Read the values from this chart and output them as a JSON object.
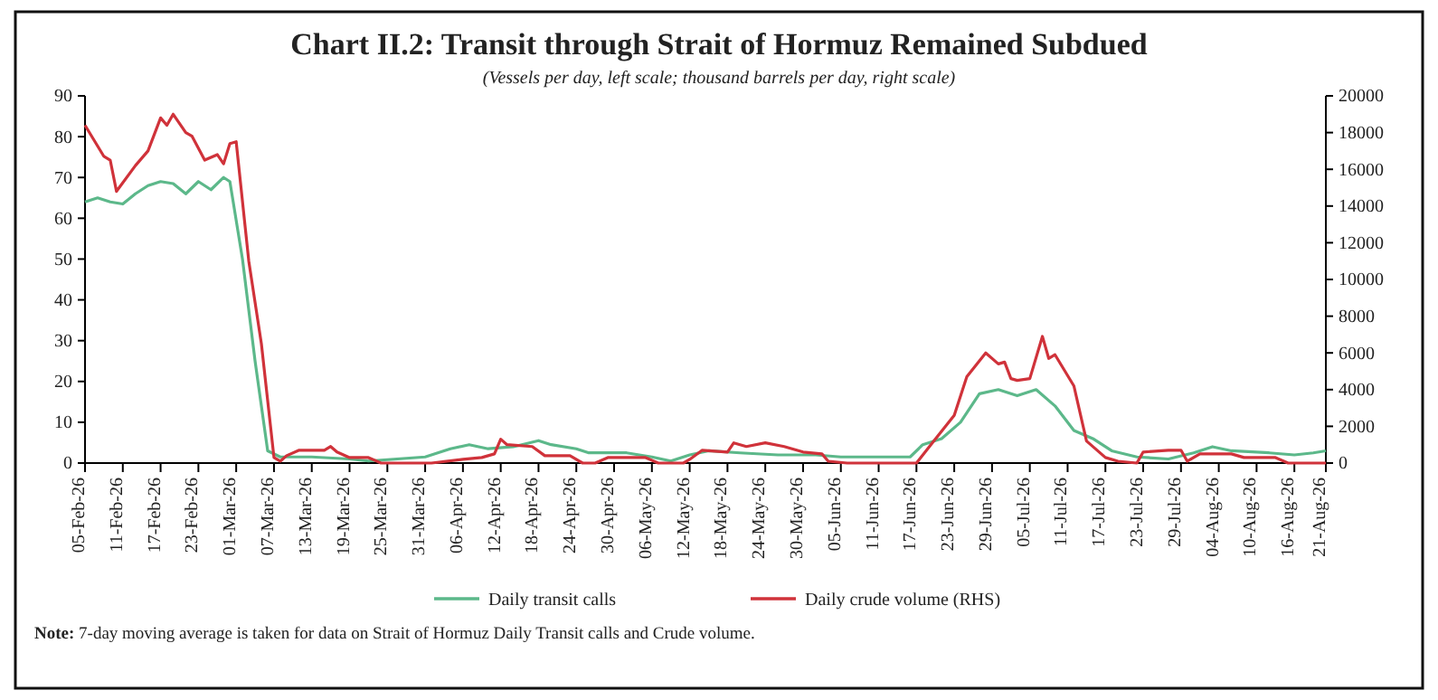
{
  "chart_data": {
    "type": "line",
    "title": "Chart II.2: Transit through Strait of Hormuz Remained Subdued",
    "subtitle": "(Vessels per day, left scale; thousand barrels per day, right scale)",
    "xlim": [
      "--02-05",
      "--08-21"
    ],
    "xticks": [
      {
        "value": "--02-05",
        "label": "05-Feb-26"
      },
      {
        "value": "--02-11",
        "label": "11-Feb-26"
      },
      {
        "value": "--02-17",
        "label": "17-Feb-26"
      },
      {
        "value": "--02-23",
        "label": "23-Feb-26"
      },
      {
        "value": "--03-01",
        "label": "01-Mar-26"
      },
      {
        "value": "--03-07",
        "label": "07-Mar-26"
      },
      {
        "value": "--03-13",
        "label": "13-Mar-26"
      },
      {
        "value": "--03-19",
        "label": "19-Mar-26"
      },
      {
        "value": "--03-25",
        "label": "25-Mar-26"
      },
      {
        "value": "--03-31",
        "label": "31-Mar-26"
      },
      {
        "value": "--04-06",
        "label": "06-Apr-26"
      },
      {
        "value": "--04-12",
        "label": "12-Apr-26"
      },
      {
        "value": "--04-18",
        "label": "18-Apr-26"
      },
      {
        "value": "--04-24",
        "label": "24-Apr-26"
      },
      {
        "value": "--04-30",
        "label": "30-Apr-26"
      },
      {
        "value": "--05-06",
        "label": "06-May-26"
      },
      {
        "value": "--05-12",
        "label": "12-May-26"
      },
      {
        "value": "--05-18",
        "label": "18-May-26"
      },
      {
        "value": "--05-24",
        "label": "24-May-26"
      },
      {
        "value": "--05-30",
        "label": "30-May-26"
      },
      {
        "value": "--06-05",
        "label": "05-Jun-26"
      },
      {
        "value": "--06-11",
        "label": "11-Jun-26"
      },
      {
        "value": "--06-17",
        "label": "17-Jun-26"
      },
      {
        "value": "--06-23",
        "label": "23-Jun-26"
      },
      {
        "value": "--06-29",
        "label": "29-Jun-26"
      },
      {
        "value": "--07-05",
        "label": "05-Jul-26"
      },
      {
        "value": "--07-11",
        "label": "11-Jul-26"
      },
      {
        "value": "--07-17",
        "label": "17-Jul-26"
      },
      {
        "value": "--07-23",
        "label": "23-Jul-26"
      },
      {
        "value": "--07-29",
        "label": "29-Jul-26"
      },
      {
        "value": "--08-04",
        "label": "04-Aug-26"
      },
      {
        "value": "--08-10",
        "label": "10-Aug-26"
      },
      {
        "value": "--08-16",
        "label": "16-Aug-26"
      },
      {
        "value": "--08-21",
        "label": "21-Aug-26"
      }
    ],
    "ylim": [
      0,
      90
    ],
    "yticks": [
      0,
      10,
      20,
      30,
      40,
      50,
      60,
      70,
      80,
      90
    ],
    "y2lim": [
      0,
      20000
    ],
    "y2ticks": [
      0,
      2000,
      4000,
      6000,
      8000,
      10000,
      12000,
      14000,
      16000,
      18000,
      20000
    ],
    "legend": "bottom",
    "series": [
      {
        "name": "Daily transit calls",
        "color": "#5cb88a",
        "axis": "y",
        "x": [
          "--02-05",
          "--02-07",
          "--02-09",
          "--02-11",
          "--02-13",
          "--02-15",
          "--02-17",
          "--02-19",
          "--02-21",
          "--02-23",
          "--02-25",
          "--02-27",
          "--02-28",
          "--03-02",
          "--03-04",
          "--03-06",
          "--03-08",
          "--03-13",
          "--03-19",
          "--03-22",
          "--03-31",
          "--04-04",
          "--04-07",
          "--04-10",
          "--04-14",
          "--04-18",
          "--04-20",
          "--04-24",
          "--04-26",
          "--05-02",
          "--05-06",
          "--05-09",
          "--05-12",
          "--05-15",
          "--05-20",
          "--05-26",
          "--06-01",
          "--06-05",
          "--06-10",
          "--06-16",
          "--06-18",
          "--06-21",
          "--06-24",
          "--06-27",
          "--06-30",
          "--07-03",
          "--07-06",
          "--07-09",
          "--07-12",
          "--07-15",
          "--07-18",
          "--07-22",
          "--07-27",
          "--07-31",
          "--08-03",
          "--08-06",
          "--08-12",
          "--08-16",
          "--08-19",
          "--08-21"
        ],
        "values": [
          64,
          65,
          64,
          63.5,
          66,
          68,
          69,
          68.5,
          66,
          69,
          67,
          70,
          69,
          50,
          25,
          3,
          1.5,
          1.5,
          1,
          0.5,
          1.5,
          3.5,
          4.5,
          3.5,
          4,
          5.5,
          4.5,
          3.5,
          2.5,
          2.5,
          1.5,
          0.5,
          2,
          3,
          2.5,
          2,
          2,
          1.5,
          1.5,
          1.5,
          4.5,
          6,
          10,
          17,
          18,
          16.5,
          18,
          14,
          8,
          6,
          3,
          1.5,
          1,
          2.5,
          4,
          3,
          2.5,
          2,
          2.5,
          3
        ]
      },
      {
        "name": "Daily crude volume (RHS)",
        "color": "#d0323a",
        "axis": "y2",
        "x": [
          "--02-05",
          "--02-08",
          "--02-09",
          "--02-10",
          "--02-13",
          "--02-15",
          "--02-17",
          "--02-18",
          "--02-19",
          "--02-21",
          "--02-22",
          "--02-24",
          "--02-26",
          "--02-27",
          "--02-28",
          "--03-01",
          "--03-03",
          "--03-05",
          "--03-07",
          "--03-08",
          "--03-09",
          "--03-11",
          "--03-15",
          "--03-16",
          "--03-17",
          "--03-19",
          "--03-22",
          "--03-24",
          "--04-01",
          "--04-06",
          "--04-09",
          "--04-11",
          "--04-12",
          "--04-13",
          "--04-17",
          "--04-19",
          "--04-23",
          "--04-25",
          "--04-27",
          "--04-29",
          "--05-05",
          "--05-07",
          "--05-11",
          "--05-12",
          "--05-14",
          "--05-18",
          "--05-19",
          "--05-21",
          "--05-24",
          "--05-27",
          "--05-30",
          "--06-02",
          "--06-03",
          "--06-06",
          "--06-17",
          "--06-20",
          "--06-23",
          "--06-25",
          "--06-28",
          "--06-30",
          "--07-01",
          "--07-02",
          "--07-03",
          "--07-05",
          "--07-07",
          "--07-08",
          "--07-09",
          "--07-12",
          "--07-14",
          "--07-17",
          "--07-19",
          "--07-22",
          "--07-23",
          "--07-27",
          "--07-29",
          "--07-30",
          "--08-01",
          "--08-06",
          "--08-08",
          "--08-13",
          "--08-15",
          "--08-21"
        ],
        "values": [
          18400,
          16700,
          16500,
          14800,
          16200,
          17000,
          18800,
          18400,
          19000,
          18000,
          17800,
          16500,
          16800,
          16300,
          17400,
          17500,
          11000,
          6500,
          300,
          100,
          400,
          700,
          700,
          900,
          600,
          300,
          300,
          0,
          0,
          200,
          300,
          500,
          1300,
          1000,
          900,
          400,
          400,
          0,
          0,
          300,
          300,
          0,
          0,
          200,
          700,
          600,
          1100,
          900,
          1100,
          900,
          600,
          500,
          100,
          0,
          0,
          1300,
          2600,
          4700,
          6000,
          5400,
          5500,
          4600,
          4500,
          4600,
          6900,
          5700,
          5900,
          4200,
          1200,
          300,
          100,
          0,
          600,
          700,
          700,
          100,
          500,
          500,
          300,
          300,
          0,
          0
        ]
      }
    ],
    "annotations": [
      "Note: 7-day moving average is taken for data on Strait of Hormuz Daily Transit calls and Crude volume."
    ]
  }
}
